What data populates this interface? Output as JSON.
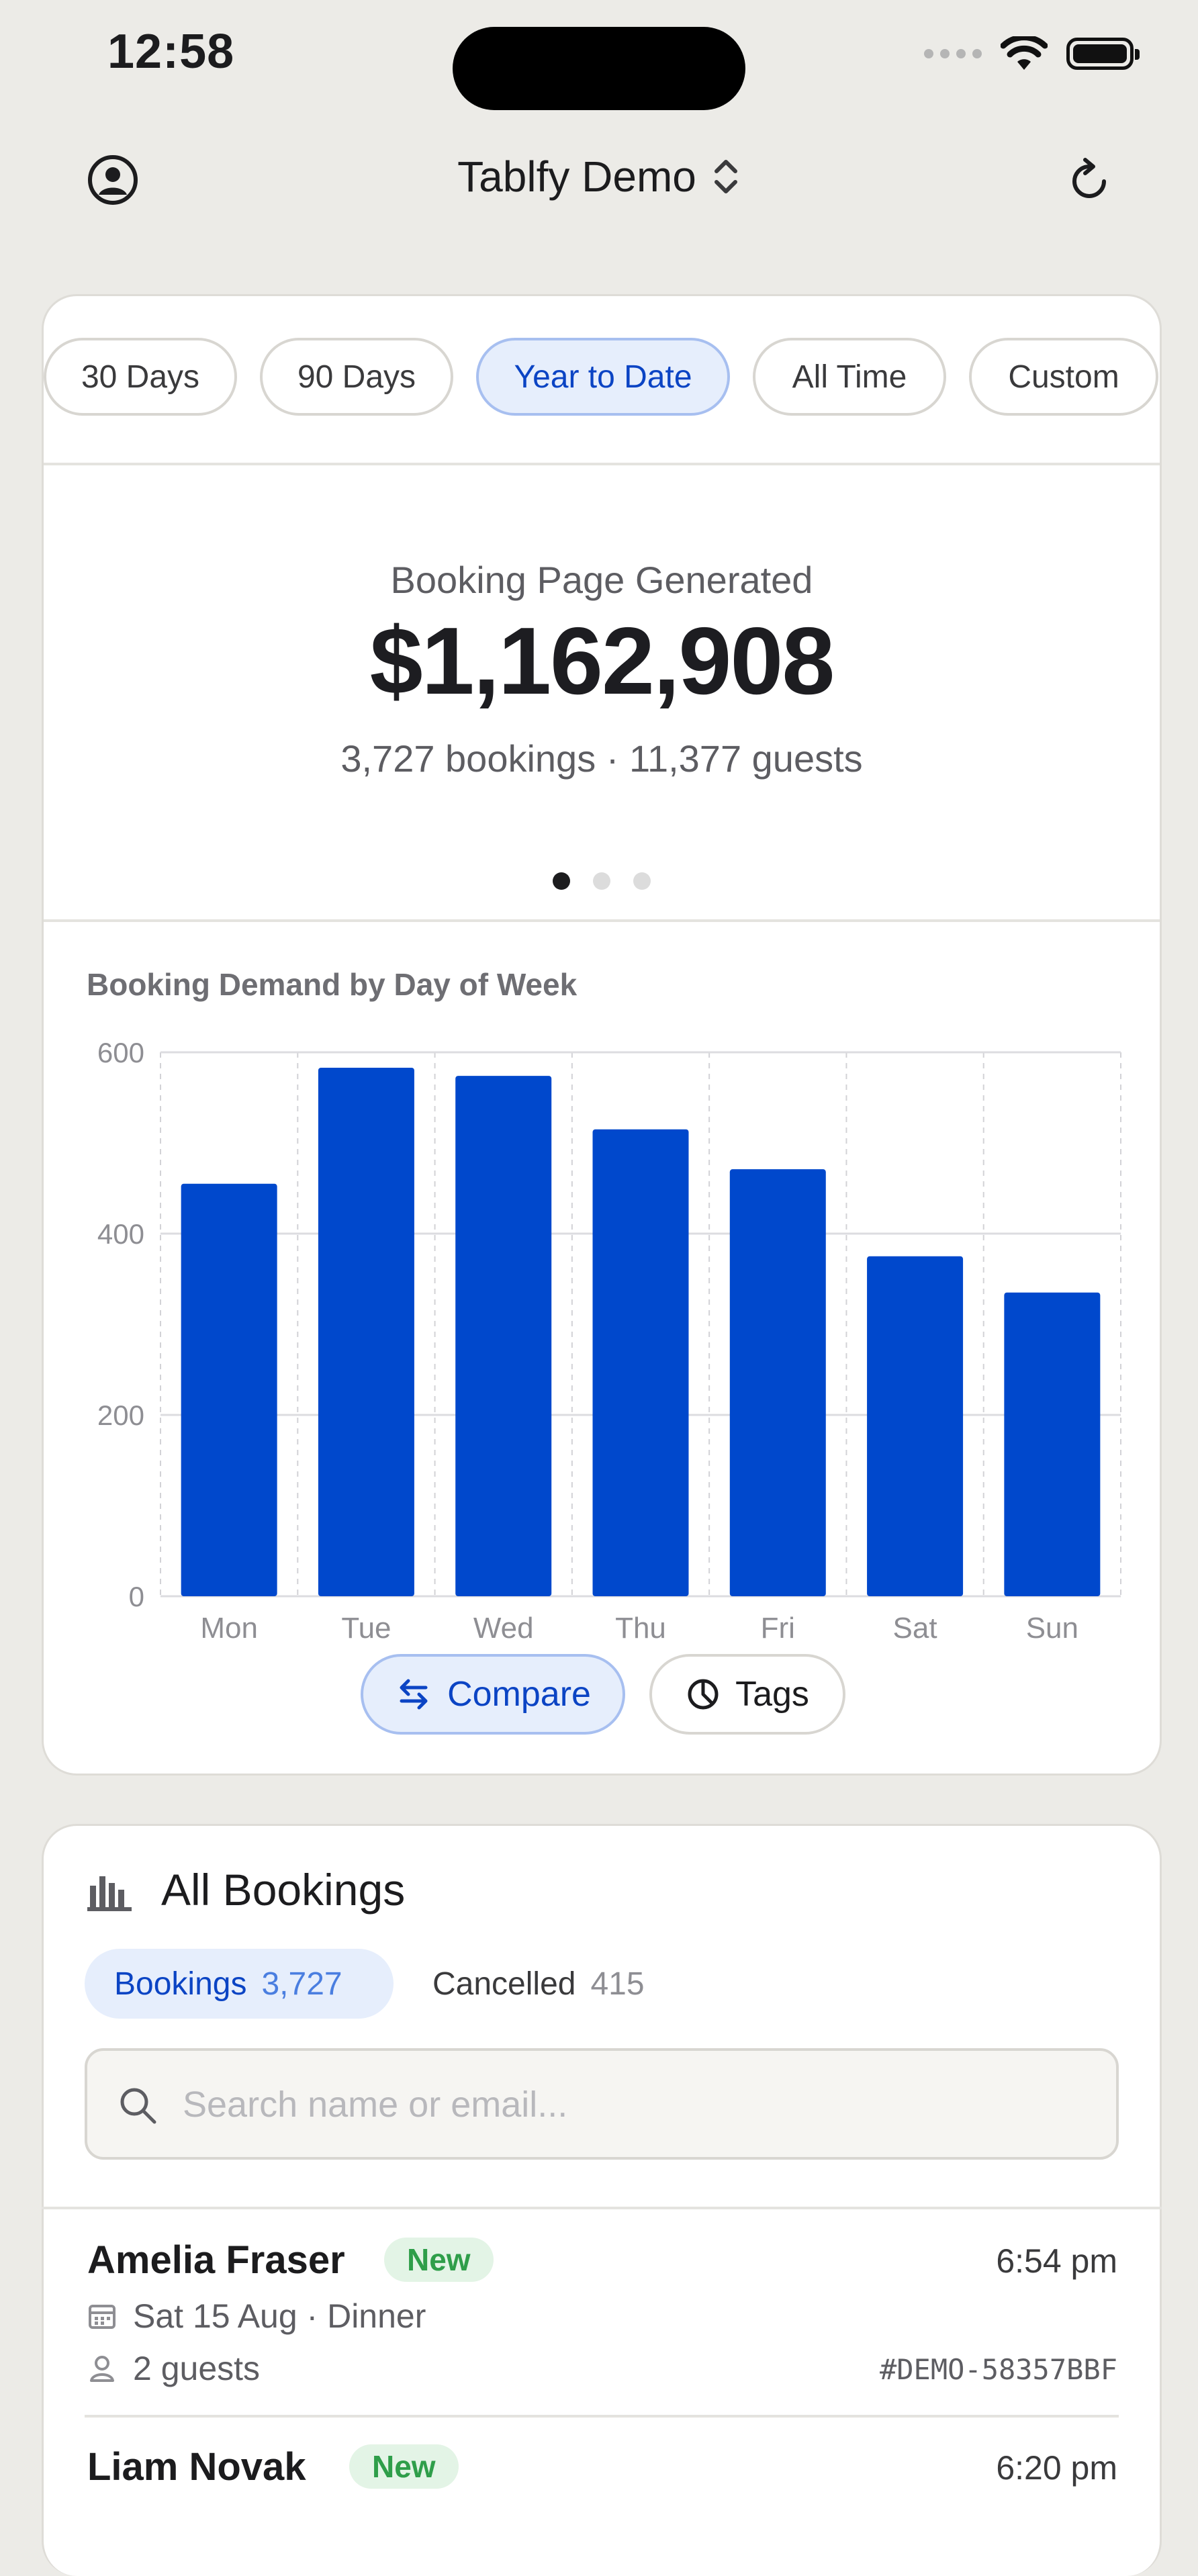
{
  "status_bar": {
    "time": "12:58"
  },
  "header": {
    "title": "Tablfy Demo"
  },
  "ranges": [
    {
      "label": "30 Days",
      "active": false
    },
    {
      "label": "90 Days",
      "active": false
    },
    {
      "label": "Year to Date",
      "active": true
    },
    {
      "label": "All Time",
      "active": false
    },
    {
      "label": "Custom",
      "active": false
    }
  ],
  "kpi": {
    "label": "Booking Page Generated",
    "value": "$1,162,908",
    "sub": "3,727 bookings · 11,377 guests",
    "page_index": 1,
    "page_count": 3
  },
  "chart_data": {
    "type": "bar",
    "title": "Booking Demand by Day of Week",
    "categories": [
      "Mon",
      "Tue",
      "Wed",
      "Thu",
      "Fri",
      "Sat",
      "Sun"
    ],
    "values": [
      455,
      583,
      574,
      515,
      471,
      375,
      335
    ],
    "ylim": [
      0,
      600
    ],
    "yticks": [
      0,
      200,
      400,
      600
    ],
    "grid": true,
    "bar_color": "#0048CC"
  },
  "chart_actions": {
    "compare_label": "Compare",
    "tags_label": "Tags"
  },
  "bookings": {
    "title": "All Bookings",
    "tabs": [
      {
        "label": "Bookings",
        "count": "3,727",
        "active": true
      },
      {
        "label": "Cancelled",
        "count": "415",
        "active": false
      }
    ],
    "search_placeholder": "Search name or email...",
    "rows": [
      {
        "name": "Amelia Fraser",
        "badge": "New",
        "time": "6:54 pm",
        "date": "Sat 15 Aug · Dinner",
        "guests": "2 guests",
        "ref": "#DEMO-58357BBF"
      },
      {
        "name": "Liam Novak",
        "badge": "New",
        "time": "6:20 pm"
      }
    ]
  }
}
